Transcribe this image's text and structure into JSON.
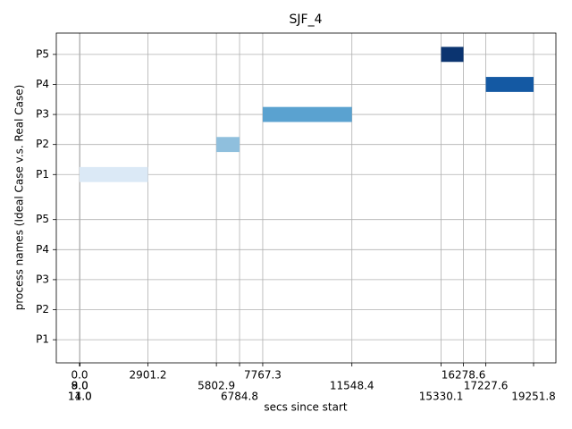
{
  "chart_data": {
    "type": "gantt",
    "title": "SJF_4",
    "x_label": "secs since start",
    "y_label": "process names (Ideal Case v.s. Real Case)",
    "xlim": [
      -985,
      20199
    ],
    "ylim": [
      0.23,
      11.21
    ],
    "xticks": [
      {
        "value": 9,
        "label": "9.0"
      },
      {
        "value": 14,
        "label": "14.0"
      },
      {
        "value": 0,
        "label": "0.0"
      },
      {
        "value": 8,
        "label": "8.0"
      },
      {
        "value": 11,
        "label": "11.0"
      },
      2901.2,
      5802.9,
      6784.8,
      7767.3,
      11548.4,
      15330.1,
      16278.6,
      17227.6,
      19251.8
    ],
    "yticks": [
      {
        "value": 1,
        "label": "P1"
      },
      {
        "value": 2,
        "label": "P2"
      },
      {
        "value": 3,
        "label": "P3"
      },
      {
        "value": 4,
        "label": "P4"
      },
      {
        "value": 5,
        "label": "P5"
      },
      {
        "value": 6.5,
        "label": "P1"
      },
      {
        "value": 7.5,
        "label": "P2"
      },
      {
        "value": 8.5,
        "label": "P3"
      },
      {
        "value": 9.5,
        "label": "P4"
      },
      {
        "value": 10.5,
        "label": "P5"
      }
    ],
    "bar_height": 0.5,
    "grid": true,
    "bars": [
      {
        "y": 6.5,
        "start": 0,
        "end": 2901.2,
        "color": "#dbe9f6"
      },
      {
        "y": 7.5,
        "start": 5802.9,
        "end": 6784.8,
        "color": "#8fbfdd"
      },
      {
        "y": 8.5,
        "start": 7767.3,
        "end": 11548.4,
        "color": "#5aa2d0"
      },
      {
        "y": 9.5,
        "start": 17227.6,
        "end": 19251.8,
        "color": "#1459a3"
      },
      {
        "y": 10.5,
        "start": 15330.1,
        "end": 16278.6,
        "color": "#0b3470"
      }
    ]
  }
}
